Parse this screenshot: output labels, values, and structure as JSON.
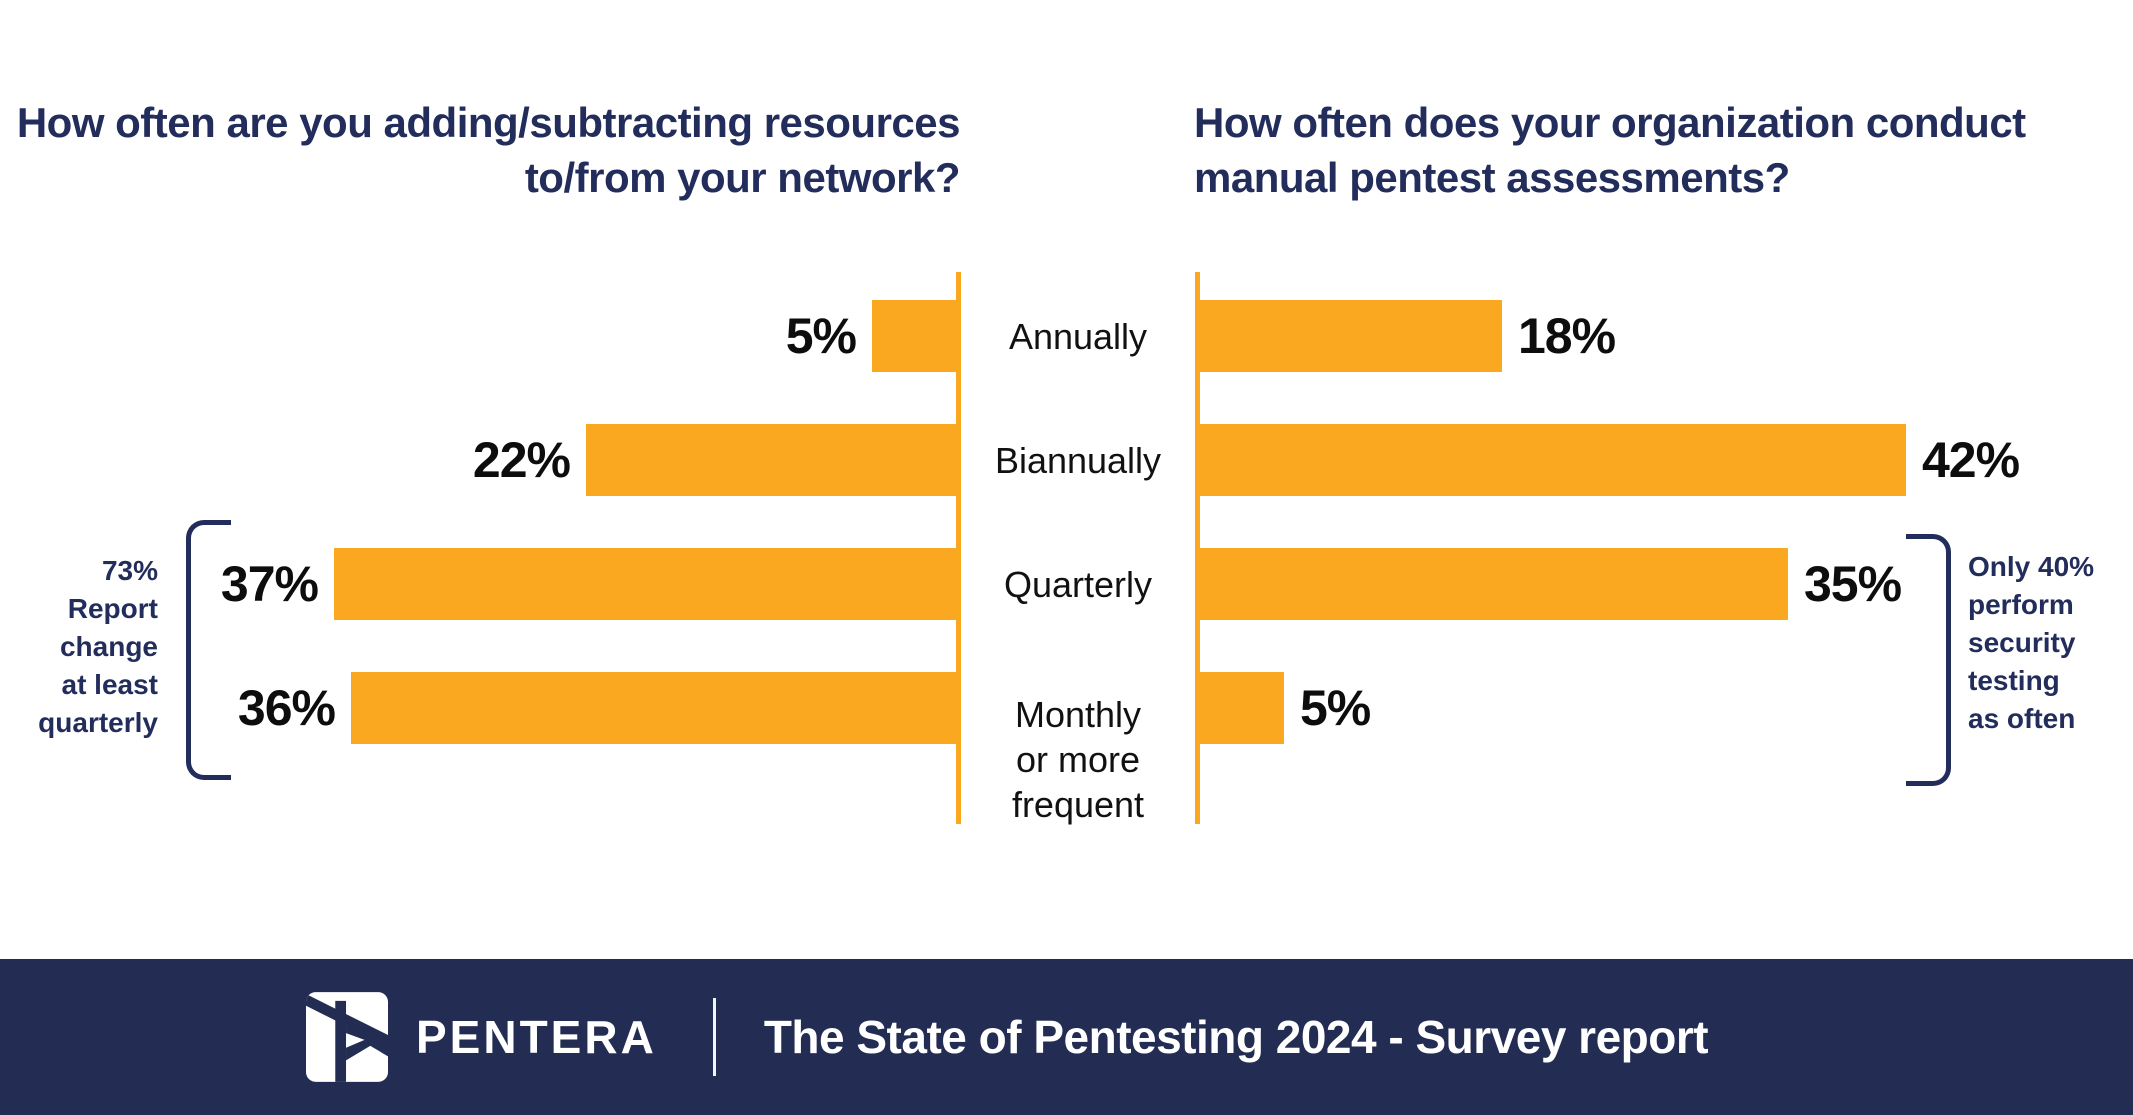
{
  "titles": {
    "left": "How often are you adding/subtracting resources to/from your network?",
    "right": "How often does your organization conduct manual pentest assessments?"
  },
  "chart_data": {
    "type": "bar",
    "variant": "butterfly",
    "orientation": "horizontal",
    "categories": [
      "Annually",
      "Biannually",
      "Quarterly",
      "Monthly\nor more\nfrequent"
    ],
    "series": [
      {
        "name": "How often are you adding/subtracting resources to/from your network?",
        "side": "left",
        "values": [
          5,
          22,
          37,
          36
        ]
      },
      {
        "name": "How often does your organization conduct manual pentest assessments?",
        "side": "right",
        "values": [
          18,
          42,
          35,
          5
        ]
      }
    ],
    "value_suffix": "%",
    "xlim": [
      0,
      45
    ],
    "grid": false,
    "legend": false,
    "bar_color": "#F9A81F",
    "axis_color": "#F9A81F"
  },
  "annotations": {
    "left": {
      "text": "73%\nReport\nchange\nat least\nquarterly"
    },
    "right": {
      "text": "Only 40%\nperform\nsecurity\ntesting\nas often"
    }
  },
  "footer": {
    "brand": "PENTERA",
    "report": "The State of Pentesting 2024 - Survey report"
  },
  "colors": {
    "bar_orange": "#F9A81F",
    "navy_text": "#232D5B",
    "footer_background": "#232C52",
    "value_text": "#0d0d0d",
    "footer_text": "#ffffff"
  }
}
